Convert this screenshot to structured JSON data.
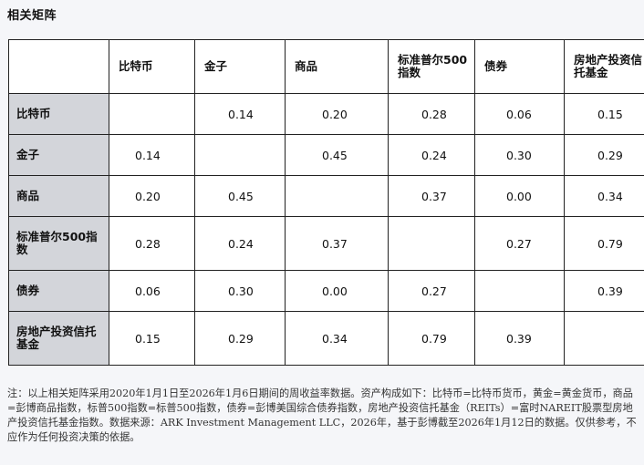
{
  "title": "相关矩阵",
  "chart_data": {
    "type": "table",
    "title": "相关矩阵",
    "columns": [
      "比特币",
      "金子",
      "商品",
      "标准普尔500指数",
      "债券",
      "房地产投资信托基金"
    ],
    "rows": [
      {
        "label": "比特币",
        "values": [
          "",
          "0.14",
          "0.20",
          "0.28",
          "0.06",
          "0.15"
        ]
      },
      {
        "label": "金子",
        "values": [
          "0.14",
          "",
          "0.45",
          "0.24",
          "0.30",
          "0.29"
        ]
      },
      {
        "label": "商品",
        "values": [
          "0.20",
          "0.45",
          "",
          "0.37",
          "0.00",
          "0.34"
        ]
      },
      {
        "label": "标准普尔500指数",
        "values": [
          "0.28",
          "0.24",
          "0.37",
          "",
          "0.27",
          "0.79"
        ]
      },
      {
        "label": "债券",
        "values": [
          "0.06",
          "0.30",
          "0.00",
          "0.27",
          "",
          "0.39"
        ]
      },
      {
        "label": "房地产投资信托基金",
        "values": [
          "0.15",
          "0.29",
          "0.34",
          "0.79",
          "0.39",
          ""
        ]
      }
    ]
  },
  "note": "注：以上相关矩阵采用2020年1月1日至2026年1月6日期间的周收益率数据。资产构成如下：比特币=比特币货币，黄金=黄金货币，商品=彭博商品指数，标普500指数=标普500指数，债券=彭博美国综合债券指数，房地产投资信托基金（REITs）=富时NAREIT股票型房地产投资信托基金指数。数据来源：ARK Investment Management LLC，2026年，基于彭博截至2026年1月12日的数据。仅供参考，不应作为任何投资决策的依据。"
}
